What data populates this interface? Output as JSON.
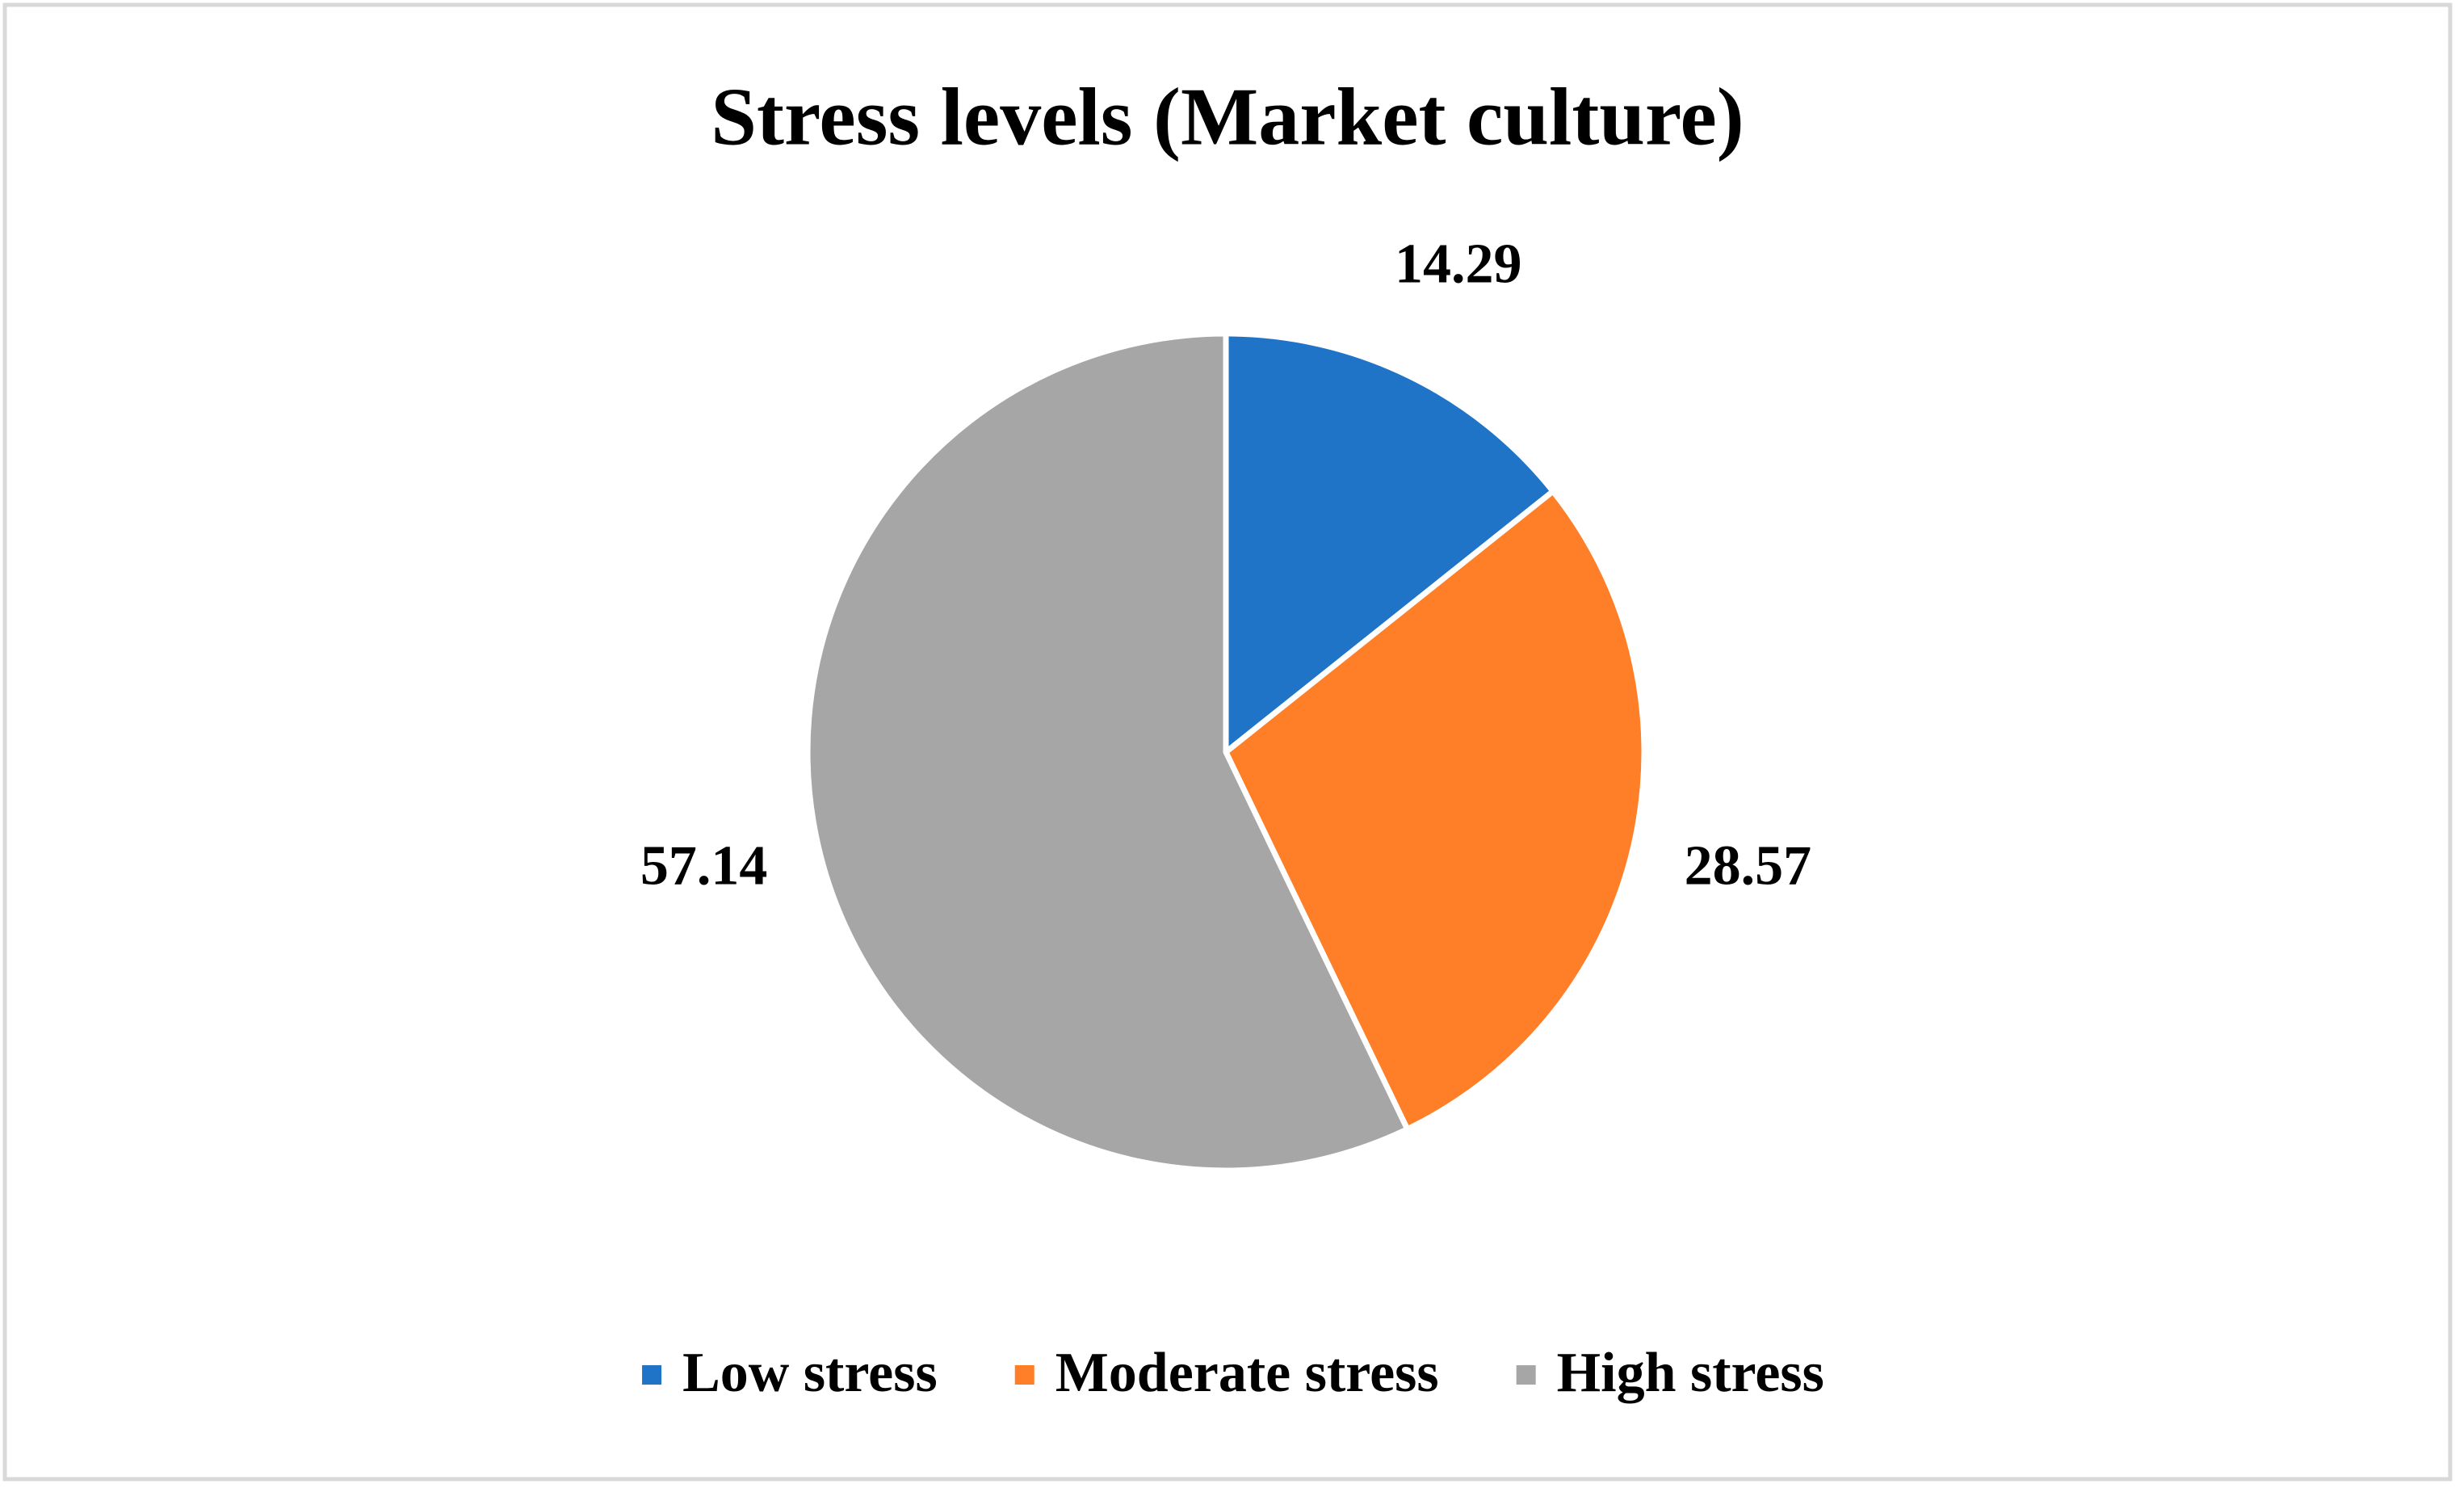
{
  "chart_data": {
    "type": "pie",
    "title": "Stress levels (Market culture)",
    "categories": [
      "Low stress",
      "Moderate stress",
      "High stress"
    ],
    "values": [
      14.29,
      28.57,
      57.14
    ],
    "colors": [
      "#1f74c8",
      "#fe7f27",
      "#a6a6a6"
    ],
    "legend": "bottom"
  }
}
